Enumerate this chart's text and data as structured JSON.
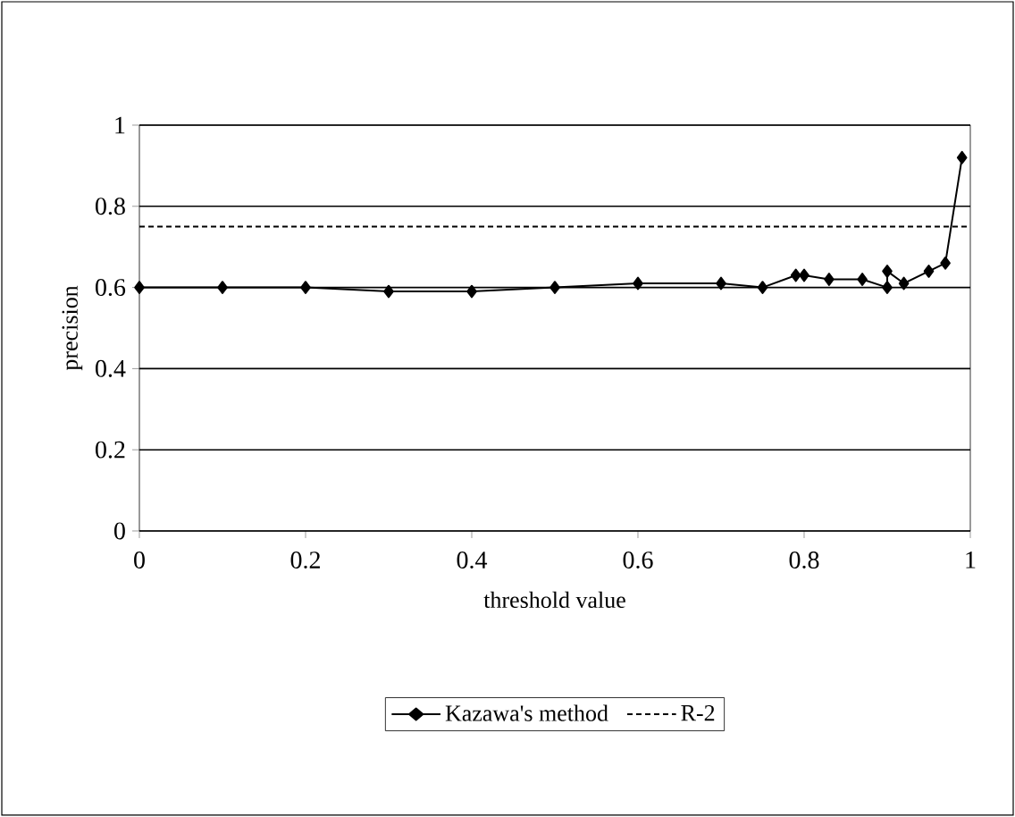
{
  "chart_data": {
    "type": "line",
    "xlabel": "threshold value",
    "ylabel": "precision",
    "xlim": [
      0,
      1
    ],
    "ylim": [
      0,
      1
    ],
    "xticks": [
      0,
      0.2,
      0.4,
      0.6,
      0.8,
      1
    ],
    "yticks": [
      0,
      0.2,
      0.4,
      0.6,
      0.8,
      1
    ],
    "grid": "y",
    "legend": "bottom",
    "series": [
      {
        "name": "Kazawa's method",
        "color": "#000000",
        "marker": "diamond",
        "line_style": "solid",
        "x": [
          0,
          0.1,
          0.2,
          0.3,
          0.4,
          0.5,
          0.6,
          0.7,
          0.75,
          0.79,
          0.8,
          0.83,
          0.87,
          0.9,
          0.9,
          0.92,
          0.95,
          0.97,
          0.99
        ],
        "values": [
          0.6,
          0.6,
          0.6,
          0.59,
          0.59,
          0.6,
          0.61,
          0.61,
          0.6,
          0.63,
          0.63,
          0.62,
          0.62,
          0.6,
          0.64,
          0.61,
          0.64,
          0.66,
          0.92
        ]
      },
      {
        "name": "R-2",
        "color": "#000000",
        "marker": "none",
        "line_style": "dashed",
        "x": [
          0,
          1
        ],
        "values": [
          0.75,
          0.75
        ]
      }
    ]
  }
}
